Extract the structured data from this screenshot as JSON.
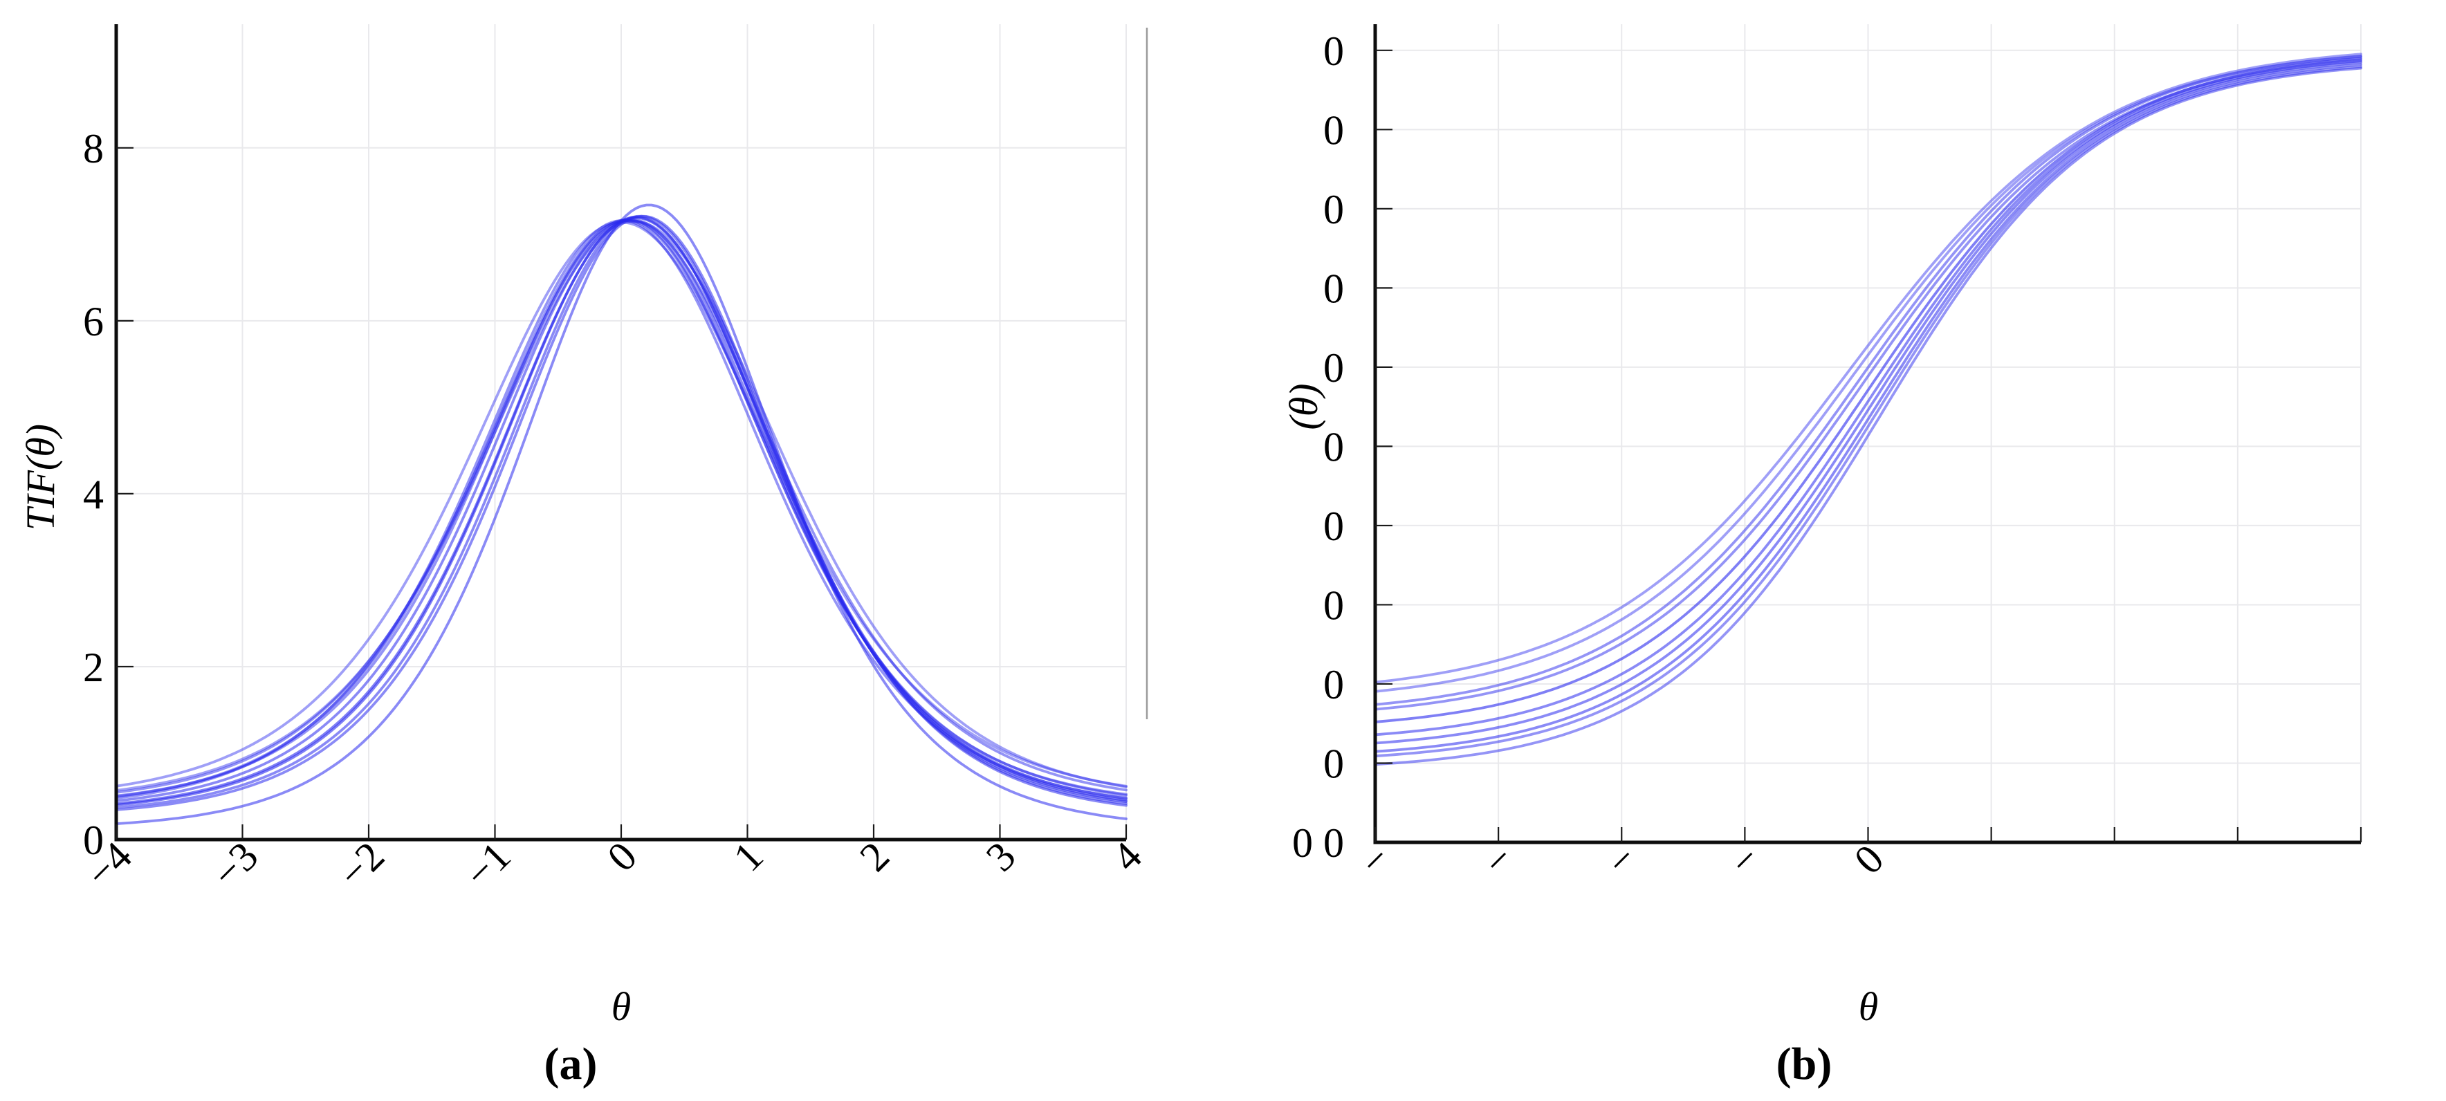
{
  "captions": {
    "a": "(a)",
    "b": "(b)"
  },
  "colors": {
    "curve": "#2a2aee",
    "grid": "#e9e9ec",
    "axis": "#0d0d0d",
    "tick": "#1a1a1a",
    "divider": "#9b9b9b",
    "background": "#ffffff"
  },
  "chart_data": [
    {
      "type": "line",
      "panel": "a",
      "title": "",
      "xlabel": "θ",
      "ylabel": "TIF(θ)",
      "xlim": [
        -4,
        4
      ],
      "ylim": [
        0,
        9.43
      ],
      "grid": true,
      "legend": "none",
      "xticks": {
        "values": [
          -4,
          -3,
          -2,
          -1,
          0,
          1,
          2,
          3,
          4
        ],
        "labels": [
          "−4",
          "−3",
          "−2",
          "−1",
          "0",
          "1",
          "2",
          "3",
          "4"
        ],
        "rotation": 45
      },
      "yticks": {
        "values": [
          0,
          2,
          4,
          6,
          8
        ],
        "labels": [
          "0",
          "2",
          "4",
          "6",
          "8"
        ]
      },
      "curve_model": "y = base + amp * sech((x-center)/width)^2",
      "anchor_points": {
        "x": [
          -4,
          -3,
          -2,
          -1,
          0,
          0.1,
          1,
          2,
          3,
          4
        ],
        "y_typical": [
          0.38,
          0.95,
          1.9,
          4.5,
          7.1,
          7.2,
          5.1,
          2.1,
          0.95,
          0.55
        ]
      },
      "series": [
        {
          "name": "tif-curve-1",
          "base": 0.33,
          "amp": 6.84,
          "center": 0.08,
          "width": 1.5,
          "opacity": 0.55
        },
        {
          "name": "tif-curve-2",
          "base": 0.36,
          "amp": 6.8,
          "center": 0.04,
          "width": 1.53,
          "opacity": 0.5
        },
        {
          "name": "tif-curve-3",
          "base": 0.3,
          "amp": 6.9,
          "center": 0.12,
          "width": 1.47,
          "opacity": 0.6
        },
        {
          "name": "tif-curve-4",
          "base": 0.4,
          "amp": 6.76,
          "center": 0.07,
          "width": 1.56,
          "opacity": 0.5
        },
        {
          "name": "tif-curve-5",
          "base": 0.28,
          "amp": 6.93,
          "center": 0.15,
          "width": 1.45,
          "opacity": 0.55
        },
        {
          "name": "tif-curve-6",
          "base": 0.34,
          "amp": 6.82,
          "center": 0.01,
          "width": 1.52,
          "opacity": 0.5
        },
        {
          "name": "tif-curve-7",
          "base": 0.42,
          "amp": 6.73,
          "center": 0.1,
          "width": 1.58,
          "opacity": 0.45
        },
        {
          "name": "tif-curve-8",
          "base": 0.26,
          "amp": 6.95,
          "center": 0.17,
          "width": 1.44,
          "opacity": 0.55
        },
        {
          "name": "tif-curve-9",
          "base": 0.38,
          "amp": 6.79,
          "center": 0.05,
          "width": 1.51,
          "opacity": 0.5
        },
        {
          "name": "tif-curve-10",
          "base": 0.31,
          "amp": 6.88,
          "center": 0.12,
          "width": 1.48,
          "opacity": 0.6
        },
        {
          "name": "tif-curve-11",
          "base": 0.44,
          "amp": 6.7,
          "center": 0.0,
          "width": 1.6,
          "opacity": 0.45
        },
        {
          "name": "tif-curve-12",
          "base": 0.12,
          "amp": 7.22,
          "center": 0.22,
          "width": 1.38,
          "opacity": 0.55
        }
      ]
    },
    {
      "type": "line",
      "panel": "b",
      "title": "",
      "xlabel": "θ",
      "ylabel": "(θ)",
      "xlim": [
        -4,
        4
      ],
      "ylim": [
        0,
        1.033
      ],
      "grid": true,
      "legend": "none",
      "xticks": {
        "values": [
          -4,
          -3,
          -2,
          -1,
          0,
          1,
          2,
          3,
          4
        ],
        "labels": [
          "−",
          "−",
          "−",
          "−",
          "0",
          "",
          "",
          "",
          ""
        ],
        "rotation": 45
      },
      "yticks": {
        "values": [
          0,
          0.1,
          0.2,
          0.3,
          0.4,
          0.5,
          0.6,
          0.7,
          0.8,
          0.9,
          1.0
        ],
        "labels": [
          "0 0",
          "0",
          "0",
          "0",
          "0",
          "0",
          "0",
          "0",
          "0",
          "0",
          "0"
        ]
      },
      "curve_model": "y = y0 + (y1-y0) / (1 + exp(-(x-center)/scale))",
      "anchor_points": {
        "x": [
          -4,
          -2,
          0,
          2,
          4
        ],
        "y_typical": [
          0.14,
          0.25,
          0.55,
          0.88,
          0.985
        ]
      },
      "series": [
        {
          "name": "sigmoid-curve-1",
          "y0": 0.155,
          "y1": 1.0,
          "center": -0.05,
          "scale": 0.95,
          "opacity": 0.5
        },
        {
          "name": "sigmoid-curve-2",
          "y0": 0.125,
          "y1": 0.998,
          "center": 0.02,
          "scale": 0.92,
          "opacity": 0.55
        },
        {
          "name": "sigmoid-curve-3",
          "y0": 0.175,
          "y1": 1.005,
          "center": -0.12,
          "scale": 0.98,
          "opacity": 0.45
        },
        {
          "name": "sigmoid-curve-4",
          "y0": 0.105,
          "y1": 0.993,
          "center": 0.06,
          "scale": 0.9,
          "opacity": 0.55
        },
        {
          "name": "sigmoid-curve-5",
          "y0": 0.14,
          "y1": 1.002,
          "center": 0.0,
          "scale": 0.94,
          "opacity": 0.6
        },
        {
          "name": "sigmoid-curve-6",
          "y0": 0.09,
          "y1": 0.988,
          "center": 0.1,
          "scale": 0.88,
          "opacity": 0.5
        },
        {
          "name": "sigmoid-curve-7",
          "y0": 0.16,
          "y1": 1.004,
          "center": -0.08,
          "scale": 0.96,
          "opacity": 0.5
        },
        {
          "name": "sigmoid-curve-8",
          "y0": 0.115,
          "y1": 0.996,
          "center": 0.04,
          "scale": 0.91,
          "opacity": 0.55
        },
        {
          "name": "sigmoid-curve-9",
          "y0": 0.185,
          "y1": 1.008,
          "center": -0.15,
          "scale": 1.0,
          "opacity": 0.45
        },
        {
          "name": "sigmoid-curve-10",
          "y0": 0.1,
          "y1": 0.99,
          "center": 0.08,
          "scale": 0.89,
          "opacity": 0.5
        }
      ]
    }
  ],
  "divider": {
    "present": true
  }
}
